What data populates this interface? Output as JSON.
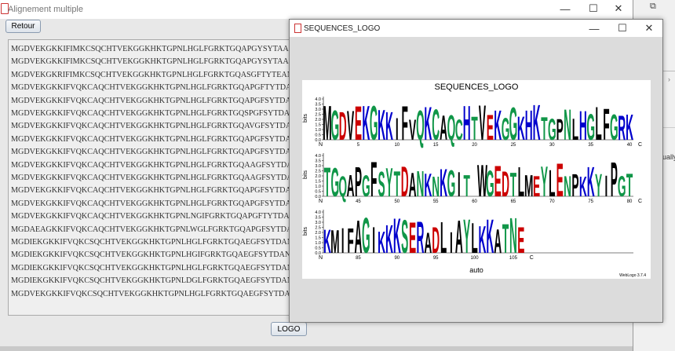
{
  "main_window": {
    "title": "Alignement multiple",
    "back_button": "Retour",
    "logo_button": "LOGO",
    "sequences": [
      "MGDVEKGKKIFIMKCSQCHTVEKGGKHKTGPNLHGLFGRKTGQAPGYSYTAANKNKGII-WGE",
      "MGDVEKGKKIFIMKCSQCHTVEKGGKHKTGPNLHGLFGRKTGQAPGYSYTAANKNKGII-WGE",
      "MGDVEKGKRIFIMKCSQCHTVEKGGKHKTGPNLHGLFGRKTGQASGFTYTEANKNKGII-WGE",
      "MGDVEKGKKIFVQKCAQCHTVEKGGKHKTGPNLHGLFGRKTGQAPGFTYTDANKNKGIT-WGE",
      "MGDVEKGKKIFVQKCAQCHTVEKGGKHKTGPNLHGLFGRKTGQAPGFSYTDANKNKGIT-WGE",
      "MGDVEKGKKIFVQKCAQCHTVEKGGKHKTGPNLHGLFGRKTGQSPGFSYTDANKNKGIT-WGE",
      "MGDVEKGKKIFVQKCAQCHTVEKGGKHKTGPNLHGLFGRKTGQAVGFSYTDANKNKGIT-WGE",
      "MGDVEKGKKIFVQKCAQCHTVEKGGKHKTGPNLHGLFGRKTGQAPGFSYTDANKNKGIT-WGE",
      "MGDVEKGKKIFVQKCAQCHTVEKGGKHKTGPNLHGLFGRKTGQAPGFSYTDANKNKGIT-WGE",
      "MGDVEKGKKIFVQKCAQCHTVEKGGKHKTGPNLHGLFGRKTGQAAGFSYTDANKNKGIT-WGE",
      "MGDVEKGKKIFVQKCAQCHTVEKGGKHKTGPNLHGLFGRKTGQAAGFSYTDANKNKGIT-WGE",
      "MGDVEKGKKIFVQKCAQCHTVEKGGKHKTGPNLHGLFGRKTGQAPGFSYTDANKNKGIT-WGE",
      "MGDVEKGKKIFVQKCAQCHTVEKGGKHKTGPNLHGLFGRKTGQAPGFSYTDANKNKGIT-WGE",
      "MGDVEKGKKIFVQKCAQCHTVEKGGKHKTGPNLNGIFGRKTGQAPGFTYTDANKNKGII-WGE",
      "MGDAEAGKKIFVQKCAQCHTVEKGGKHKTGPNLWGLFGRKTGQAPGFSYTDANKNKGVI-WGE",
      "MGDIEKGKKIFVQKCSQCHTVEKGGKHKTGPNLHGLFGRKTGQAEGFSYTDANKNKG-ITWGE",
      "MGDIEKGKKIFVQKCSQCHTVEKGGKHKTGPNLHGIFGRKTGQAEGFSYTDANKNKG-ITWGE",
      "MGDIEKGKKIFVQKCSQCHTVEKGGKHKTGPNLHGLFGRKTGQAEGFSYTDANKNKG-ITWGE",
      "MGDIEKGKKIFVQKCSQCHTVEKGGKHKTGPNLDGLFGRKTGQAEGFSYTDANKNKG-ITWGE",
      "MGDVEKGKKIFVQKCSQCHTVEKGGKHKTGPNLHGLFGRKTGQAEGFSYTDANKNKG-ITWGE"
    ]
  },
  "logo_window": {
    "title": "SEQUENCES_LOGO",
    "chart_title": "SEQUENCES_LOGO",
    "ylabel": "bits",
    "xlabel": "auto",
    "credit": "WebLogo 3.7.4",
    "n_label": "N",
    "c_label": "C",
    "y_ticks": [
      "0.0",
      "0.5",
      "1.0",
      "1.5",
      "2.0",
      "2.5",
      "3.0",
      "3.5",
      "4.0"
    ],
    "rows": [
      {
        "ticks": [
          "5",
          "10",
          "15",
          "20",
          "25",
          "30",
          "35",
          "40"
        ],
        "letters": "MGDVEKGKKIFVQKCAQCHTVEKGGKHKTGPNLHGLFGRK"
      },
      {
        "ticks": [
          "45",
          "50",
          "55",
          "60",
          "65",
          "70",
          "75",
          "80"
        ],
        "letters": "TGQAPGFSYTDANKNKGIT-WGEDTLMEYLENPKKYIPGT"
      },
      {
        "ticks": [
          "85",
          "90",
          "95",
          "100",
          "105"
        ],
        "letters": "KMIFAGIKKKSERADLIAYLKKATNE"
      }
    ]
  },
  "right_edge": {
    "text": "ually"
  },
  "colors": {
    "basic": "#0000cc",
    "acidic": "#cc0000",
    "polar": "#109648",
    "hydrophobic": "#000000",
    "neutral": "#6a1b9a"
  },
  "icons": [
    "java-icon",
    "minimize-icon",
    "maximize-icon",
    "close-icon",
    "restore-icon"
  ]
}
